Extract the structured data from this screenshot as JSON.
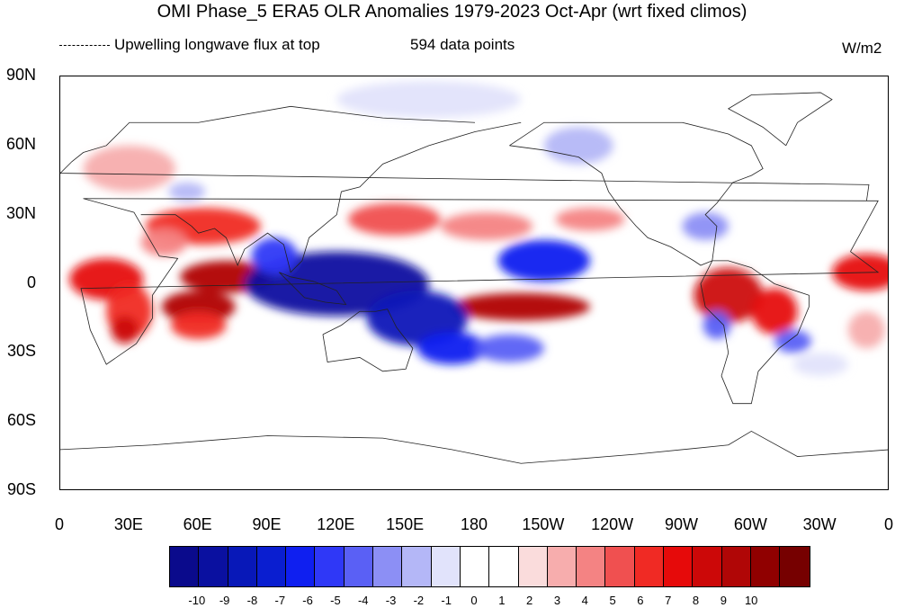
{
  "title": "OMI Phase_5 ERA5 OLR Anomalies 1979-2023 Oct-Apr (wrt fixed climos)",
  "legend_line_label": "Upwelling longwave flux at top",
  "data_points_label": "594 data points",
  "units": "W/m2",
  "y_tick_labels": [
    "90N",
    "60N",
    "30N",
    "0",
    "30S",
    "60S",
    "90S"
  ],
  "x_tick_labels": [
    "0",
    "30E",
    "60E",
    "90E",
    "120E",
    "150E",
    "180",
    "150W",
    "120W",
    "90W",
    "60W",
    "30W",
    "0"
  ],
  "colorbar": {
    "labels": [
      "-10",
      "-9",
      "-8",
      "-7",
      "-6",
      "-5",
      "-4",
      "-3",
      "-2",
      "-1",
      "0",
      "1",
      "2",
      "3",
      "4",
      "5",
      "6",
      "7",
      "8",
      "9",
      "10"
    ],
    "colors": [
      "#0a0a8c",
      "#0a10a0",
      "#0818b8",
      "#0a1ed0",
      "#0f1ff0",
      "#2f38f7",
      "#5a60f5",
      "#8c8ff5",
      "#b4b7f7",
      "#e1e3fb",
      "#ffffff",
      "#ffffff",
      "#fadcdc",
      "#f7adad",
      "#f48383",
      "#f05050",
      "#f02a24",
      "#e60a0a",
      "#cc0808",
      "#b00606",
      "#900000",
      "#760000"
    ]
  },
  "map_data": {
    "lon_range": [
      0,
      360
    ],
    "lat_range": [
      -90,
      90
    ],
    "features": [
      {
        "lon": 20,
        "lat": 2,
        "rlon": 16,
        "rlat": 9,
        "value": 6
      },
      {
        "lon": 30,
        "lat": -12,
        "rlon": 10,
        "rlat": 12,
        "value": 5
      },
      {
        "lon": 28,
        "lat": -20,
        "rlon": 6,
        "rlat": 6,
        "value": 7
      },
      {
        "lon": 72,
        "lat": 3,
        "rlon": 20,
        "rlat": 7,
        "value": 8
      },
      {
        "lon": 60,
        "lat": -10,
        "rlon": 16,
        "rlat": 7,
        "value": 8
      },
      {
        "lon": 60,
        "lat": -18,
        "rlon": 12,
        "rlat": 6,
        "value": 5
      },
      {
        "lon": 62,
        "lat": 25,
        "rlon": 25,
        "rlat": 8,
        "value": 5
      },
      {
        "lon": 45,
        "lat": 18,
        "rlon": 10,
        "rlat": 6,
        "value": 3
      },
      {
        "lon": 145,
        "lat": 28,
        "rlon": 20,
        "rlat": 7,
        "value": 4
      },
      {
        "lon": 185,
        "lat": 25,
        "rlon": 20,
        "rlat": 6,
        "value": 3
      },
      {
        "lon": 200,
        "lat": -10,
        "rlon": 30,
        "rlat": 6,
        "value": 8
      },
      {
        "lon": 230,
        "lat": 28,
        "rlon": 15,
        "rlat": 5,
        "value": 3
      },
      {
        "lon": 290,
        "lat": -5,
        "rlon": 15,
        "rlat": 12,
        "value": 7
      },
      {
        "lon": 310,
        "lat": -12,
        "rlon": 10,
        "rlat": 10,
        "value": 6
      },
      {
        "lon": 350,
        "lat": 5,
        "rlon": 15,
        "rlat": 8,
        "value": 6
      },
      {
        "lon": 350,
        "lat": -20,
        "rlon": 8,
        "rlat": 8,
        "value": 2
      },
      {
        "lon": 30,
        "lat": 50,
        "rlon": 20,
        "rlat": 10,
        "value": 2
      },
      {
        "lon": 120,
        "lat": 0,
        "rlon": 40,
        "rlat": 14,
        "value": -10
      },
      {
        "lon": 155,
        "lat": -15,
        "rlon": 22,
        "rlat": 12,
        "value": -9
      },
      {
        "lon": 170,
        "lat": -28,
        "rlon": 15,
        "rlat": 7,
        "value": -7
      },
      {
        "lon": 195,
        "lat": -28,
        "rlon": 15,
        "rlat": 6,
        "value": -5
      },
      {
        "lon": 210,
        "lat": 10,
        "rlon": 20,
        "rlat": 9,
        "value": -7
      },
      {
        "lon": 93,
        "lat": 12,
        "rlon": 10,
        "rlat": 8,
        "value": -6
      },
      {
        "lon": 280,
        "lat": 25,
        "rlon": 10,
        "rlat": 6,
        "value": -4
      },
      {
        "lon": 285,
        "lat": -18,
        "rlon": 6,
        "rlat": 6,
        "value": -5
      },
      {
        "lon": 318,
        "lat": -25,
        "rlon": 8,
        "rlat": 5,
        "value": -5
      },
      {
        "lon": 225,
        "lat": 60,
        "rlon": 15,
        "rlat": 8,
        "value": -3
      },
      {
        "lon": 160,
        "lat": 80,
        "rlon": 40,
        "rlat": 8,
        "value": -2
      },
      {
        "lon": 55,
        "lat": 40,
        "rlon": 8,
        "rlat": 4,
        "value": -3
      },
      {
        "lon": 330,
        "lat": -35,
        "rlon": 12,
        "rlat": 5,
        "value": -2
      }
    ]
  }
}
